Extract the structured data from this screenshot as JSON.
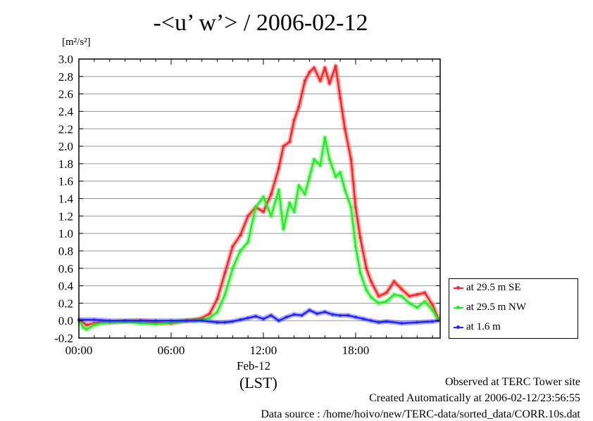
{
  "title": "-<u’ w’> / 2006-02-12",
  "unit_label": "[m²/s²]",
  "x_date_label": "Feb-12",
  "x_unit_label": "(LST)",
  "footer": {
    "line1": "Observed at TERC Tower site",
    "line2": "Created Automatically at 2006-02-12/23:56:55",
    "line3": "Data source : /home/hoivo/new/TERC-data/sorted_data/CORR.10s.dat"
  },
  "chart_data": {
    "type": "line",
    "title": "-<u’ w’> / 2006-02-12",
    "ylabel": "[m²/s²]",
    "xlabel": "(LST)",
    "xlim": [
      0,
      23.5
    ],
    "ylim": [
      -0.2,
      3.0
    ],
    "grid": true,
    "legend_position": "right-bottom",
    "x_tick_labels": [
      "00:00",
      "06:00",
      "12:00",
      "18:00"
    ],
    "x_ticks": [
      0,
      6,
      12,
      18
    ],
    "y_ticks": [
      -0.2,
      0.0,
      0.2,
      0.4,
      0.6,
      0.8,
      1.0,
      1.2,
      1.4,
      1.6,
      1.8,
      2.0,
      2.2,
      2.4,
      2.6,
      2.8,
      3.0
    ],
    "y_tick_labels": [
      "-0.2",
      "0.0",
      "0.2",
      "0.4",
      "0.6",
      "0.8",
      "1.0",
      "1.2",
      "1.4",
      "1.6",
      "1.8",
      "2.0",
      "2.2",
      "2.4",
      "2.6",
      "2.8",
      "3.0"
    ],
    "series": [
      {
        "name": "at 29.5 m SE",
        "color": "#ff2222",
        "x": [
          0,
          0.5,
          1,
          1.5,
          2,
          3,
          4,
          5,
          6,
          7,
          7.5,
          8,
          8.5,
          9,
          9.5,
          10,
          10.5,
          11,
          11.5,
          12,
          12.5,
          13,
          13.3,
          13.7,
          14,
          14.3,
          14.7,
          15,
          15.3,
          15.7,
          16,
          16.3,
          16.7,
          17,
          17.3,
          17.7,
          18,
          18.3,
          18.7,
          19,
          19.5,
          20,
          20.5,
          21,
          21.5,
          22,
          22.5,
          23,
          23.4
        ],
        "y": [
          0.01,
          -0.05,
          -0.03,
          -0.01,
          -0.02,
          -0.01,
          0.0,
          -0.02,
          -0.03,
          0.0,
          0.01,
          0.03,
          0.08,
          0.25,
          0.55,
          0.85,
          0.98,
          1.2,
          1.3,
          1.25,
          1.45,
          1.75,
          2.0,
          2.05,
          2.3,
          2.45,
          2.75,
          2.85,
          2.9,
          2.75,
          2.9,
          2.72,
          2.92,
          2.55,
          2.2,
          1.85,
          1.3,
          0.95,
          0.6,
          0.45,
          0.28,
          0.32,
          0.45,
          0.36,
          0.28,
          0.3,
          0.32,
          0.18,
          0.02
        ]
      },
      {
        "name": "at 29.5 m NW",
        "color": "#22ee22",
        "x": [
          0,
          0.3,
          0.5,
          1,
          1.5,
          2,
          3,
          4,
          5,
          6,
          7,
          7.5,
          8,
          8.5,
          9,
          9.5,
          10,
          10.5,
          11,
          11.5,
          12,
          12.5,
          13,
          13.3,
          13.7,
          14,
          14.3,
          14.7,
          15,
          15.3,
          15.7,
          16,
          16.3,
          16.7,
          17,
          17.3,
          17.7,
          18,
          18.3,
          18.7,
          19,
          19.5,
          20,
          20.5,
          21,
          21.5,
          22,
          22.5,
          23,
          23.4
        ],
        "y": [
          0.0,
          -0.08,
          -0.1,
          -0.05,
          -0.03,
          -0.02,
          -0.01,
          -0.03,
          -0.04,
          -0.02,
          0.0,
          0.0,
          0.01,
          0.03,
          0.1,
          0.3,
          0.6,
          0.8,
          0.9,
          1.3,
          1.42,
          1.2,
          1.5,
          1.05,
          1.35,
          1.25,
          1.55,
          1.45,
          1.65,
          1.85,
          1.78,
          2.1,
          1.85,
          1.65,
          1.7,
          1.5,
          1.3,
          0.85,
          0.55,
          0.35,
          0.27,
          0.2,
          0.22,
          0.3,
          0.28,
          0.2,
          0.15,
          0.22,
          0.12,
          0.0
        ]
      },
      {
        "name": "at 1.6 m",
        "color": "#2222ff",
        "x": [
          0,
          1,
          2,
          3,
          4,
          5,
          6,
          7,
          8,
          9,
          9.5,
          10,
          10.5,
          11,
          11.5,
          12,
          12.5,
          13,
          13.5,
          14,
          14.5,
          15,
          15.5,
          16,
          16.5,
          17,
          17.5,
          18,
          18.5,
          19,
          19.5,
          20,
          21,
          22,
          23,
          23.4
        ],
        "y": [
          0.01,
          0.01,
          0.0,
          0.0,
          0.0,
          0.0,
          0.0,
          0.0,
          0.0,
          -0.02,
          -0.02,
          -0.01,
          0.01,
          0.03,
          0.05,
          0.02,
          0.06,
          0.0,
          0.04,
          0.07,
          0.06,
          0.12,
          0.08,
          0.1,
          0.07,
          0.06,
          0.06,
          0.04,
          0.02,
          0.0,
          -0.02,
          -0.01,
          -0.03,
          -0.02,
          -0.01,
          0.0
        ]
      }
    ]
  }
}
